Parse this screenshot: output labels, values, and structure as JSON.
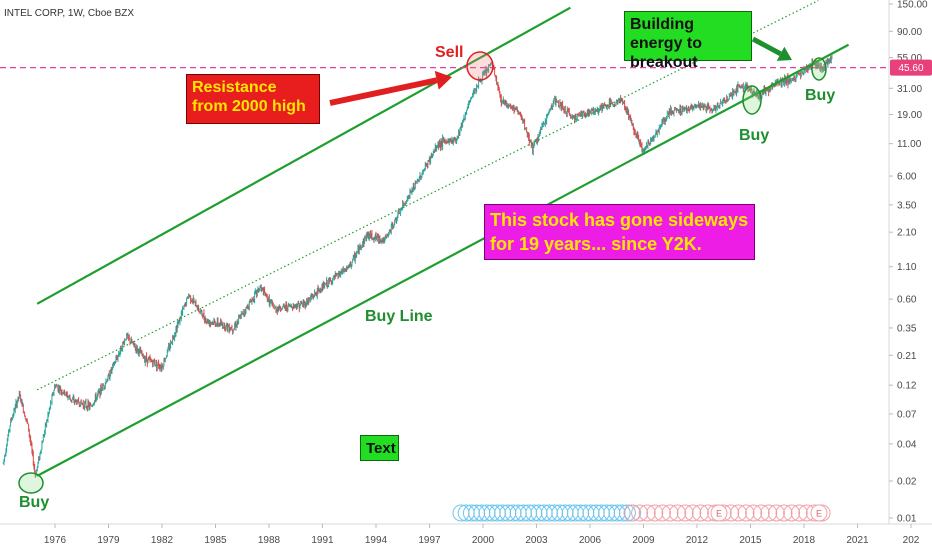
{
  "header": {
    "title": "INTEL CORP, 1W, Cboe BZX"
  },
  "colors": {
    "channel": "#1e9e2e",
    "resistance": "#e040a0",
    "price_badge": "#e8407a",
    "up_candle": "#26a69a",
    "down_candle": "#d94a4a",
    "sell": "#e02020",
    "buy": "#1e8e2e"
  },
  "chart_data": {
    "type": "candlestick",
    "y_scale": "log",
    "ylim": [
      0.01,
      150
    ],
    "xlim": [
      1973.0,
      2023.0
    ],
    "y_ticks": [
      "150.00",
      "90.00",
      "55.00",
      "31.00",
      "19.00",
      "11.00",
      "6.00",
      "3.50",
      "2.10",
      "1.10",
      "0.60",
      "0.35",
      "0.21",
      "0.12",
      "0.07",
      "0.04",
      "0.02",
      "0.01"
    ],
    "x_ticks": [
      "1976",
      "1979",
      "1982",
      "1985",
      "1988",
      "1991",
      "1994",
      "1997",
      "2000",
      "2003",
      "2006",
      "2009",
      "2012",
      "2015",
      "2018",
      "2021",
      "202"
    ],
    "current_price": "45.60",
    "resistance_level": 45.6,
    "price_path": [
      {
        "x": 1973.1,
        "y": 0.028
      },
      {
        "x": 1973.5,
        "y": 0.06
      },
      {
        "x": 1974.0,
        "y": 0.1
      },
      {
        "x": 1974.5,
        "y": 0.055
      },
      {
        "x": 1974.9,
        "y": 0.022
      },
      {
        "x": 1975.4,
        "y": 0.05
      },
      {
        "x": 1976.0,
        "y": 0.12
      },
      {
        "x": 1977.0,
        "y": 0.09
      },
      {
        "x": 1978.0,
        "y": 0.08
      },
      {
        "x": 1979.0,
        "y": 0.14
      },
      {
        "x": 1980.0,
        "y": 0.3
      },
      {
        "x": 1981.0,
        "y": 0.2
      },
      {
        "x": 1982.0,
        "y": 0.17
      },
      {
        "x": 1983.5,
        "y": 0.65
      },
      {
        "x": 1984.5,
        "y": 0.4
      },
      {
        "x": 1986.0,
        "y": 0.35
      },
      {
        "x": 1987.5,
        "y": 0.75
      },
      {
        "x": 1988.3,
        "y": 0.5
      },
      {
        "x": 1990.0,
        "y": 0.55
      },
      {
        "x": 1991.0,
        "y": 0.75
      },
      {
        "x": 1992.5,
        "y": 1.1
      },
      {
        "x": 1993.5,
        "y": 2.0
      },
      {
        "x": 1994.5,
        "y": 1.8
      },
      {
        "x": 1995.5,
        "y": 3.4
      },
      {
        "x": 1996.5,
        "y": 6.0
      },
      {
        "x": 1997.5,
        "y": 11.0
      },
      {
        "x": 1998.5,
        "y": 12.0
      },
      {
        "x": 1999.5,
        "y": 30.0
      },
      {
        "x": 2000.5,
        "y": 50.0
      },
      {
        "x": 2001.0,
        "y": 25.0
      },
      {
        "x": 2002.0,
        "y": 20.0
      },
      {
        "x": 2002.8,
        "y": 10.0
      },
      {
        "x": 2004.0,
        "y": 25.0
      },
      {
        "x": 2005.0,
        "y": 18.0
      },
      {
        "x": 2006.5,
        "y": 21.0
      },
      {
        "x": 2007.8,
        "y": 25.0
      },
      {
        "x": 2009.0,
        "y": 9.5
      },
      {
        "x": 2010.5,
        "y": 20.0
      },
      {
        "x": 2012.0,
        "y": 22.0
      },
      {
        "x": 2013.0,
        "y": 21.0
      },
      {
        "x": 2014.5,
        "y": 33.0
      },
      {
        "x": 2015.5,
        "y": 27.0
      },
      {
        "x": 2016.5,
        "y": 35.0
      },
      {
        "x": 2017.5,
        "y": 37.0
      },
      {
        "x": 2018.5,
        "y": 50.0
      },
      {
        "x": 2019.0,
        "y": 45.0
      },
      {
        "x": 2019.6,
        "y": 55.0
      }
    ],
    "channel_lines": [
      {
        "role": "upper",
        "from": {
          "x": 1975.0,
          "y": 0.55
        },
        "to": {
          "x": 2004.9,
          "y": 140.0
        }
      },
      {
        "role": "buy line",
        "from": {
          "x": 1975.0,
          "y": 0.022
        },
        "to": {
          "x": 2020.5,
          "y": 70.0
        }
      },
      {
        "role": "mid",
        "from": {
          "x": 1975.0,
          "y": 0.11
        },
        "to": {
          "x": 2018.8,
          "y": 160.0
        }
      }
    ]
  },
  "annotations": {
    "resistance": "Resistance from 2000 high",
    "sideways": "This stock has gone sideways for 19 years... since Y2K.",
    "energy": "Building energy to breakout",
    "text_box": "Text",
    "buy_line": "Buy Line",
    "sell": "Sell",
    "buy_1": "Buy",
    "buy_2": "Buy",
    "buy_3": "Buy"
  },
  "events": {
    "dividend_markers": 34,
    "earnings_markers": 26,
    "earnings_letter": "E"
  }
}
